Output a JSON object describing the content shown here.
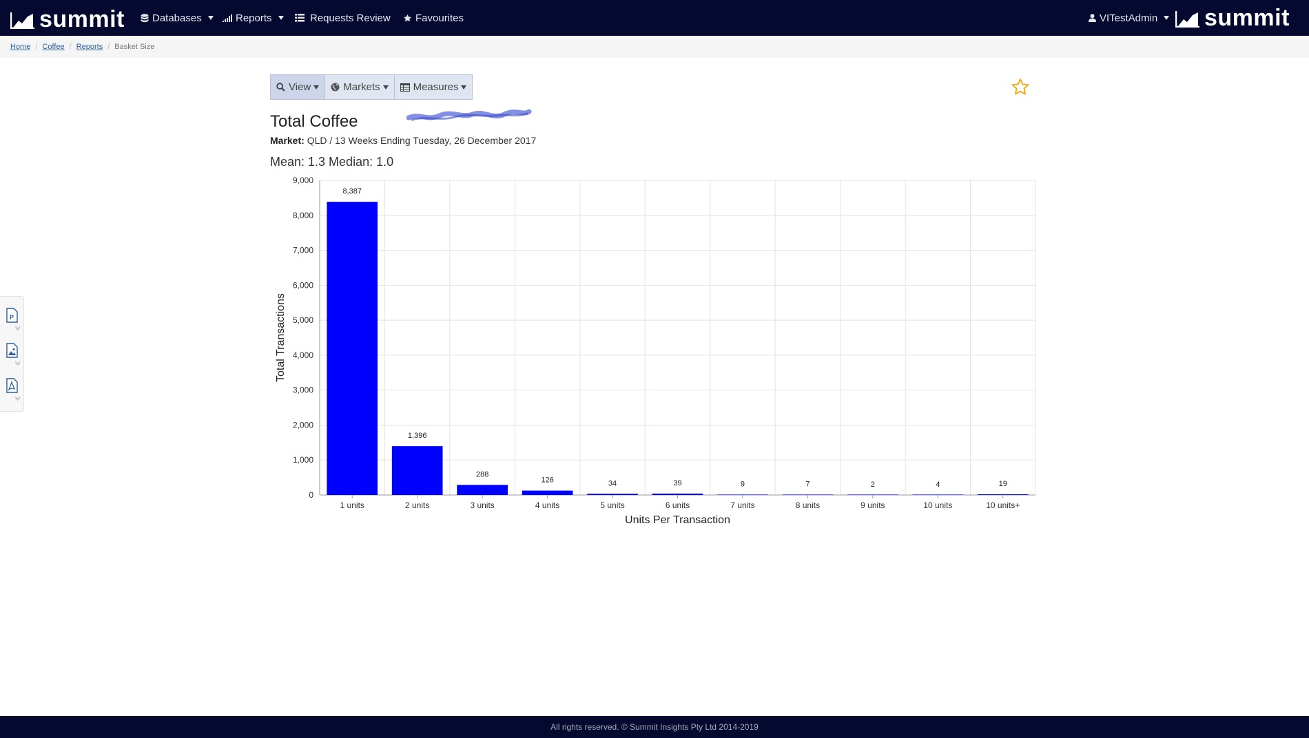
{
  "app": {
    "brand": "summit"
  },
  "nav": {
    "databases": "Databases",
    "reports": "Reports",
    "requests_review": "Requests Review",
    "favourites": "Favourites",
    "user": "VITestAdmin"
  },
  "breadcrumb": {
    "home": "Home",
    "coffee": "Coffee",
    "reports": "Reports",
    "current": "Basket Size"
  },
  "toolbar": {
    "view": "View",
    "markets": "Markets",
    "measures": "Measures"
  },
  "report": {
    "title": "Total Coffee",
    "market_label": "Market:",
    "market_value": "QLD / 13 Weeks Ending Tuesday, 26 December 2017",
    "stats": "Mean: 1.3 Median: 1.0"
  },
  "colors": {
    "navbar": "#05082f",
    "bar": "#0000ff",
    "star": "#f0a30a"
  },
  "chart_data": {
    "type": "bar",
    "categories": [
      "1 units",
      "2 units",
      "3 units",
      "4 units",
      "5 units",
      "6 units",
      "7 units",
      "8 units",
      "9 units",
      "10 units",
      "10 units+"
    ],
    "values": [
      8387,
      1396,
      288,
      126,
      34,
      39,
      9,
      7,
      2,
      4,
      19
    ],
    "data_labels": [
      "8,387",
      "1,396",
      "288",
      "126",
      "34",
      "39",
      "9",
      "7",
      "2",
      "4",
      "19"
    ],
    "xlabel": "Units Per Transaction",
    "ylabel": "Total Transactions",
    "ylim": [
      0,
      9000
    ],
    "yticks": [
      0,
      1000,
      2000,
      3000,
      4000,
      5000,
      6000,
      7000,
      8000,
      9000
    ],
    "ytick_labels": [
      "0",
      "1,000",
      "2,000",
      "3,000",
      "4,000",
      "5,000",
      "6,000",
      "7,000",
      "8,000",
      "9,000"
    ],
    "grid": true,
    "legend": "none"
  },
  "footer": {
    "text": "All rights reserved. © Summit Insights Pty Ltd 2014-2019"
  }
}
